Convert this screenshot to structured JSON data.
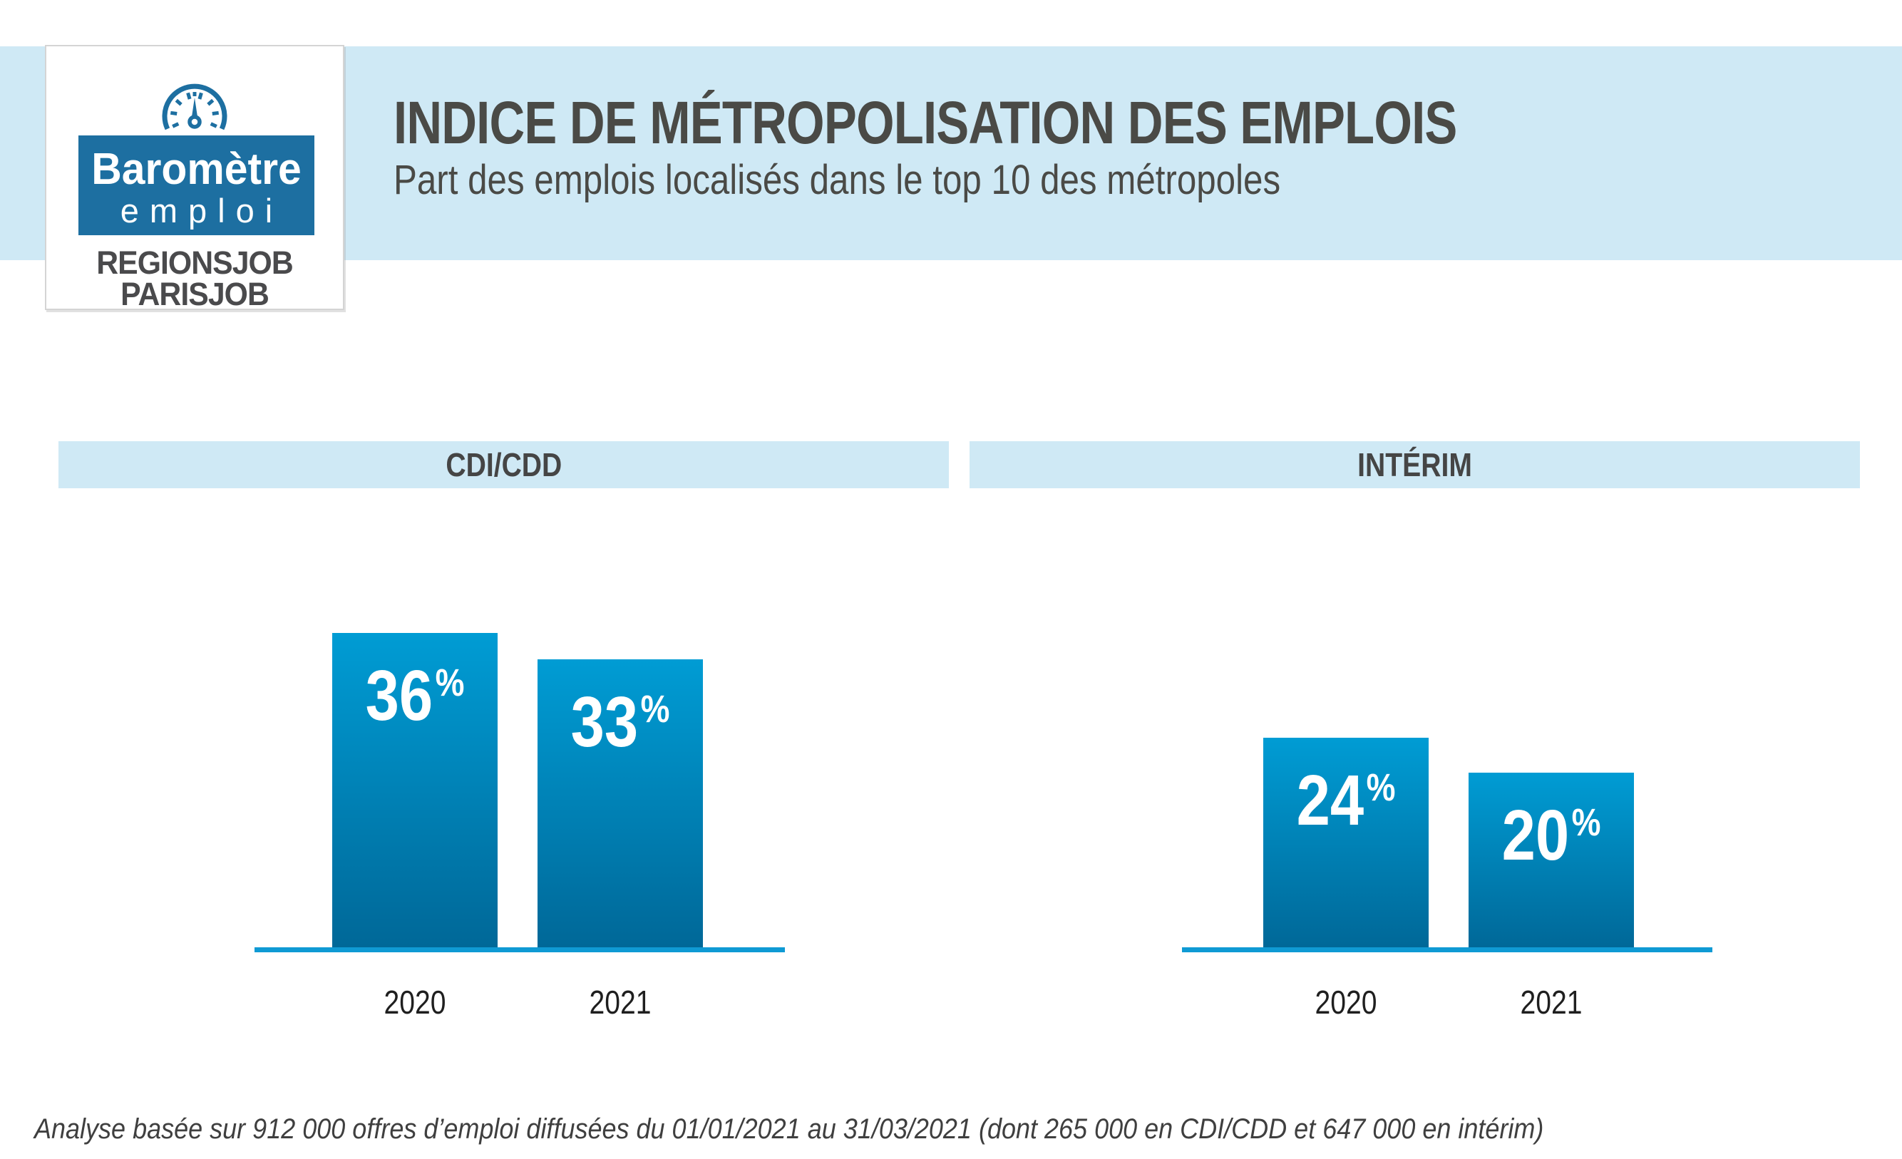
{
  "header": {
    "title": "INDICE DE MÉTROPOLISATION DES EMPLOIS",
    "subtitle": "Part des emplois localisés dans le top 10 des métropoles"
  },
  "logo": {
    "brand_top": "Baromètre",
    "brand_bottom": "emploi",
    "network_line1": "REGIONSJOB",
    "network_line2": "PARISJOB",
    "gauge_icon": "gauge-dial-icon"
  },
  "footnote": "Analyse basée sur 912 000 offres d’emploi diffusées du 01/01/2021 au 31/03/2021 (dont 265 000 en CDI/CDD et 647 000 en intérim)",
  "colors": {
    "banner_bg": "#cfe9f5",
    "logo_blue": "#1d6fa1",
    "logo_gray": "#4a4a4c",
    "title_text": "#4a4a46",
    "bar_gradient_top": "#009cd4",
    "bar_gradient_bottom": "#006898",
    "axis_line": "#0f9ad4",
    "value_text": "#ffffff",
    "year_text": "#1f1f1f"
  },
  "chart_data": [
    {
      "type": "bar",
      "title": "CDI/CDD",
      "categories": [
        "2020",
        "2021"
      ],
      "values": [
        36,
        33
      ],
      "unit": "%",
      "value_labels": [
        "36%",
        "33%"
      ],
      "ylim": [
        0,
        40
      ],
      "grid": false,
      "legend": "none"
    },
    {
      "type": "bar",
      "title": "INTÉRIM",
      "categories": [
        "2020",
        "2021"
      ],
      "values": [
        24,
        20
      ],
      "unit": "%",
      "value_labels": [
        "24%",
        "20%"
      ],
      "ylim": [
        0,
        40
      ],
      "grid": false,
      "legend": "none"
    }
  ]
}
